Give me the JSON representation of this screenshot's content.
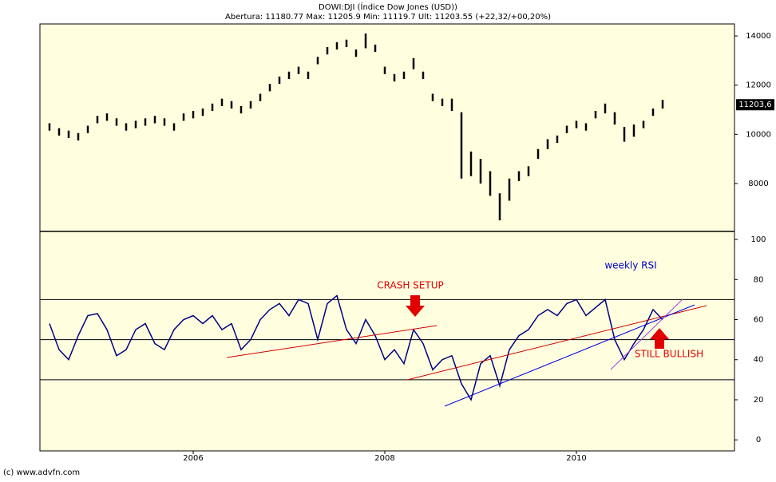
{
  "header": {
    "title": "DOWI:DJI (Índice Dow Jones (USD))",
    "subtitle": "Abertura: 11180.77 Max: 11205.9 Min: 11119.7 Ult: 11203.55 (+22,32/+00,20%)"
  },
  "footer": "(c) www.advfn.com",
  "chart_data": [
    {
      "type": "range-bar",
      "color": "#000000",
      "x": [
        2004.5,
        2004.6,
        2004.7,
        2004.8,
        2004.9,
        2005.0,
        2005.1,
        2005.2,
        2005.3,
        2005.4,
        2005.5,
        2005.6,
        2005.7,
        2005.8,
        2005.9,
        2006.0,
        2006.1,
        2006.2,
        2006.3,
        2006.4,
        2006.5,
        2006.6,
        2006.7,
        2006.8,
        2006.9,
        2007.0,
        2007.1,
        2007.2,
        2007.3,
        2007.4,
        2007.5,
        2007.6,
        2007.7,
        2007.8,
        2007.9,
        2008.0,
        2008.1,
        2008.2,
        2008.3,
        2008.4,
        2008.5,
        2008.6,
        2008.7,
        2008.8,
        2008.9,
        2009.0,
        2009.1,
        2009.2,
        2009.3,
        2009.4,
        2009.5,
        2009.6,
        2009.7,
        2009.8,
        2009.9,
        2010.0,
        2010.1,
        2010.2,
        2010.3,
        2010.4,
        2010.5,
        2010.6,
        2010.7,
        2010.8,
        2010.9
      ],
      "high": [
        10450,
        10250,
        10150,
        10050,
        10350,
        10750,
        10850,
        10650,
        10450,
        10550,
        10650,
        10750,
        10650,
        10450,
        10850,
        10950,
        11050,
        11250,
        11450,
        11350,
        11150,
        11350,
        11650,
        12050,
        12350,
        12550,
        12750,
        12550,
        13150,
        13550,
        13750,
        13850,
        13450,
        14100,
        13650,
        12750,
        12450,
        12550,
        13100,
        12550,
        11650,
        11450,
        11450,
        10900,
        9300,
        9000,
        8500,
        7600,
        8200,
        8500,
        8700,
        9400,
        9800,
        9950,
        10350,
        10550,
        10450,
        10950,
        11250,
        10900,
        10300,
        10400,
        10550,
        11050,
        11400
      ],
      "low": [
        10150,
        9950,
        9850,
        9750,
        10050,
        10450,
        10550,
        10350,
        10150,
        10250,
        10350,
        10450,
        10350,
        10150,
        10550,
        10650,
        10750,
        10950,
        11150,
        11050,
        10850,
        11050,
        11350,
        11750,
        12050,
        12250,
        12450,
        12250,
        12850,
        13250,
        13450,
        13550,
        13150,
        13500,
        13350,
        12450,
        12150,
        12250,
        12650,
        12250,
        11350,
        11150,
        10950,
        8200,
        8300,
        8000,
        7500,
        6500,
        7300,
        8100,
        8300,
        9000,
        9400,
        9650,
        10050,
        10250,
        10150,
        10650,
        10850,
        10400,
        9700,
        9900,
        10250,
        10750,
        11050
      ],
      "xlim": [
        2004.4,
        2011.65
      ],
      "xticks": [
        2006,
        2008,
        2010
      ],
      "ylim": [
        6050,
        14490
      ],
      "yticks": [
        8000,
        10000,
        12000,
        14000
      ],
      "last": {
        "value": 11203.6,
        "label": "11203,6"
      }
    },
    {
      "type": "line",
      "color": "#000080",
      "x": [
        2004.5,
        2004.6,
        2004.7,
        2004.8,
        2004.9,
        2005.0,
        2005.1,
        2005.2,
        2005.3,
        2005.4,
        2005.5,
        2005.6,
        2005.7,
        2005.8,
        2005.9,
        2006.0,
        2006.1,
        2006.2,
        2006.3,
        2006.4,
        2006.5,
        2006.6,
        2006.7,
        2006.8,
        2006.9,
        2007.0,
        2007.1,
        2007.2,
        2007.3,
        2007.4,
        2007.5,
        2007.6,
        2007.7,
        2007.8,
        2007.9,
        2008.0,
        2008.1,
        2008.2,
        2008.3,
        2008.4,
        2008.5,
        2008.6,
        2008.7,
        2008.8,
        2008.9,
        2009.0,
        2009.1,
        2009.2,
        2009.3,
        2009.4,
        2009.5,
        2009.6,
        2009.7,
        2009.8,
        2009.9,
        2010.0,
        2010.1,
        2010.2,
        2010.3,
        2010.4,
        2010.5,
        2010.6,
        2010.7,
        2010.8,
        2010.9
      ],
      "values": [
        58,
        45,
        40,
        52,
        62,
        63,
        55,
        42,
        45,
        55,
        58,
        48,
        45,
        55,
        60,
        62,
        58,
        62,
        55,
        58,
        45,
        50,
        60,
        65,
        68,
        62,
        70,
        68,
        50,
        68,
        72,
        55,
        48,
        60,
        52,
        40,
        45,
        38,
        55,
        48,
        35,
        40,
        42,
        28,
        20,
        38,
        42,
        27,
        45,
        52,
        55,
        62,
        65,
        62,
        68,
        70,
        62,
        66,
        70,
        50,
        40,
        48,
        55,
        65,
        60
      ],
      "xlim": [
        2004.4,
        2011.65
      ],
      "ylim": [
        -5.5,
        104
      ],
      "yticks": [
        0,
        20,
        40,
        60,
        80,
        100
      ],
      "levels": [
        30,
        50,
        70
      ],
      "annotations": [
        "weekly RSI",
        "CRASH SETUP",
        "STILL BULLISH"
      ]
    }
  ]
}
